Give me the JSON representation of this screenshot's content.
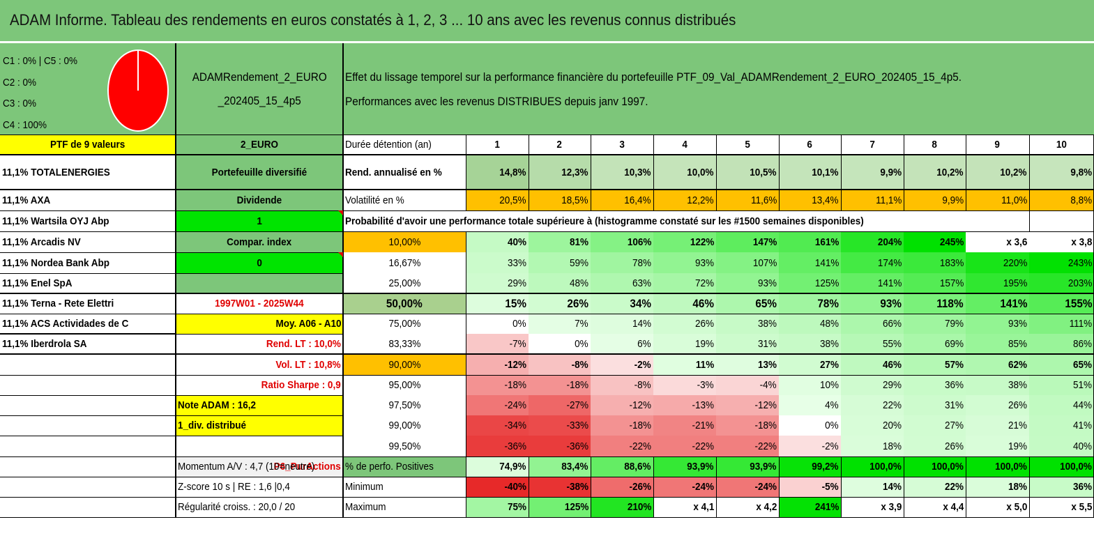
{
  "title": "ADAM Informe. Tableau des rendements en euros constatés à 1, 2, 3 ... 10 ans avec les revenus connus distribués",
  "composition": {
    "lines": [
      "C1 : 0% | C5 : 0%",
      "C2 : 0%",
      "C3 : 0%",
      "C4 : 100%"
    ],
    "pie_colors": [
      "#ff0000"
    ]
  },
  "portfolio_name": [
    "ADAMRendement_2_EURO",
    "_202405_15_4p5"
  ],
  "description": [
    "Effet du lissage temporel sur la performance financière du portefeuille PTF_09_Val_ADAMRendement_2_EURO_202405_15_4p5.",
    "Performances avec les revenus DISTRIBUES depuis janv 1997."
  ],
  "ptf_header": "PTF de 9 valeurs",
  "currency": "2_EURO",
  "holdings": [
    "11,1% TOTALENERGIES",
    "11,1% AXA",
    "11,1% Wartsila OYJ Abp",
    "11,1% Arcadis NV",
    "11,1% Nordea Bank Abp",
    "11,1% Enel SpA",
    "11,1% Terna - Rete Elettri",
    "11,1% ACS Actividades de C",
    "11,1% Iberdrola SA"
  ],
  "info": {
    "type": "Portefeuille diversifié",
    "dividend_label": "Dividende",
    "dividend_value": "1",
    "compar_label": "Compar. index",
    "compar_value": "0",
    "period": "1997W01 - 2025W44",
    "moy": "Moy. A06 - A10",
    "rend_lt": "Rend. LT : 10,0%",
    "vol_lt": "Vol. LT : 10,8%",
    "sharpe": "Ratio Sharpe : 0,9",
    "note": "Note ADAM : 16,2",
    "div": "1_div. distribué",
    "category": "P6_PurActions",
    "momentum": "Momentum A/V : 4,7 (10=neutre)",
    "zscore": "Z-score 10 s | RE : 1,6 |0,4",
    "regularite": "Régularité croiss. : 20,0 / 20"
  },
  "table": {
    "duration_label": "Durée détention (an)",
    "years": [
      "1",
      "2",
      "3",
      "4",
      "5",
      "6",
      "7",
      "8",
      "9",
      "10"
    ],
    "rend_label": "Rend. annualisé en %",
    "rend": [
      "14,8%",
      "12,3%",
      "10,3%",
      "10,0%",
      "10,5%",
      "10,1%",
      "9,9%",
      "10,2%",
      "10,2%",
      "9,8%"
    ],
    "vol_label": "Volatilité en %",
    "vol": [
      "20,5%",
      "18,5%",
      "16,4%",
      "12,2%",
      "11,6%",
      "13,4%",
      "11,1%",
      "9,9%",
      "11,0%",
      "8,8%"
    ],
    "prob_label": "Probabilité d'avoir une performance totale supérieure à (histogramme constaté sur les #1500 semaines disponibles)",
    "prob_rows": [
      {
        "p": "10,00%",
        "v": [
          "40%",
          "81%",
          "106%",
          "122%",
          "147%",
          "161%",
          "204%",
          "245%",
          "x 3,6",
          "x 3,8"
        ]
      },
      {
        "p": "16,67%",
        "v": [
          "33%",
          "59%",
          "78%",
          "93%",
          "107%",
          "141%",
          "174%",
          "183%",
          "220%",
          "243%"
        ]
      },
      {
        "p": "25,00%",
        "v": [
          "29%",
          "48%",
          "63%",
          "72%",
          "93%",
          "125%",
          "141%",
          "157%",
          "195%",
          "203%"
        ]
      },
      {
        "p": "50,00%",
        "v": [
          "15%",
          "26%",
          "34%",
          "46%",
          "65%",
          "78%",
          "93%",
          "118%",
          "141%",
          "155%"
        ]
      },
      {
        "p": "75,00%",
        "v": [
          "0%",
          "7%",
          "14%",
          "26%",
          "38%",
          "48%",
          "66%",
          "79%",
          "93%",
          "111%"
        ]
      },
      {
        "p": "83,33%",
        "v": [
          "-7%",
          "0%",
          "6%",
          "19%",
          "31%",
          "38%",
          "55%",
          "69%",
          "85%",
          "86%"
        ]
      },
      {
        "p": "90,00%",
        "v": [
          "-12%",
          "-8%",
          "-2%",
          "11%",
          "13%",
          "27%",
          "46%",
          "57%",
          "62%",
          "65%"
        ]
      },
      {
        "p": "95,00%",
        "v": [
          "-18%",
          "-18%",
          "-8%",
          "-3%",
          "-4%",
          "10%",
          "29%",
          "36%",
          "38%",
          "51%"
        ]
      },
      {
        "p": "97,50%",
        "v": [
          "-24%",
          "-27%",
          "-12%",
          "-13%",
          "-12%",
          "4%",
          "22%",
          "31%",
          "26%",
          "44%"
        ]
      },
      {
        "p": "99,00%",
        "v": [
          "-34%",
          "-33%",
          "-18%",
          "-21%",
          "-18%",
          "0%",
          "20%",
          "27%",
          "21%",
          "41%"
        ]
      },
      {
        "p": "99,50%",
        "v": [
          "-36%",
          "-36%",
          "-22%",
          "-22%",
          "-22%",
          "-2%",
          "18%",
          "26%",
          "19%",
          "40%"
        ]
      }
    ],
    "pos_label": "% de perfo. Positives",
    "pos": [
      "74,9%",
      "83,4%",
      "88,6%",
      "93,9%",
      "93,9%",
      "99,2%",
      "100,0%",
      "100,0%",
      "100,0%",
      "100,0%"
    ],
    "min_label": "Minimum",
    "min": [
      "-40%",
      "-38%",
      "-26%",
      "-24%",
      "-24%",
      "-5%",
      "14%",
      "22%",
      "18%",
      "36%"
    ],
    "max_label": "Maximum",
    "max": [
      "75%",
      "125%",
      "210%",
      "x 4,1",
      "x 4,2",
      "241%",
      "x 3,9",
      "x 4,4",
      "x 5,0",
      "x 5,5"
    ]
  }
}
